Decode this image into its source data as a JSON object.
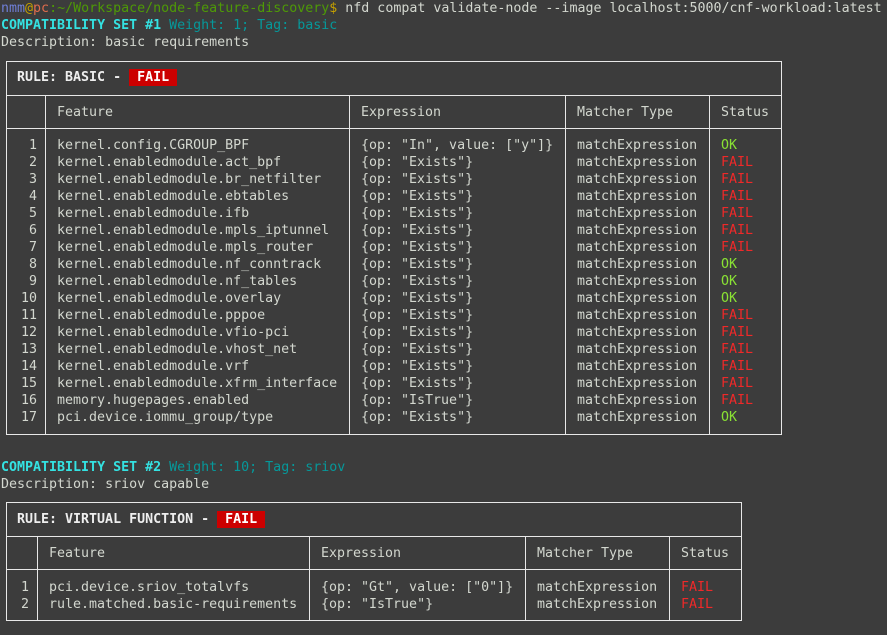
{
  "prompt": {
    "user": "nmm",
    "at": "@",
    "host": "pc",
    "sep": ":",
    "path": "~/Workspace/node-feature-discovery",
    "dollar": "$",
    "command": " nfd compat validate-node --image localhost:5000/cnf-workload:latest"
  },
  "colors": {
    "ok": "#8ae234",
    "fail": "#ef2929",
    "badge_bg": "#cc0000"
  },
  "sets": [
    {
      "heading": "COMPATIBILITY SET #1",
      "meta": " Weight: 1; Tag: basic",
      "description": "Description: basic requirements",
      "rule": {
        "label": "RULE: BASIC - ",
        "status": "FAIL"
      },
      "headers": [
        "Feature",
        "Expression",
        "Matcher Type",
        "Status"
      ],
      "rows": [
        [
          "1",
          "kernel.config.CGROUP_BPF",
          "{op: \"In\", value: [\"y\"]}",
          "matchExpression",
          "OK"
        ],
        [
          "2",
          "kernel.enabledmodule.act_bpf",
          "{op: \"Exists\"}",
          "matchExpression",
          "FAIL"
        ],
        [
          "3",
          "kernel.enabledmodule.br_netfilter",
          "{op: \"Exists\"}",
          "matchExpression",
          "FAIL"
        ],
        [
          "4",
          "kernel.enabledmodule.ebtables",
          "{op: \"Exists\"}",
          "matchExpression",
          "FAIL"
        ],
        [
          "5",
          "kernel.enabledmodule.ifb",
          "{op: \"Exists\"}",
          "matchExpression",
          "FAIL"
        ],
        [
          "6",
          "kernel.enabledmodule.mpls_iptunnel",
          "{op: \"Exists\"}",
          "matchExpression",
          "FAIL"
        ],
        [
          "7",
          "kernel.enabledmodule.mpls_router",
          "{op: \"Exists\"}",
          "matchExpression",
          "FAIL"
        ],
        [
          "8",
          "kernel.enabledmodule.nf_conntrack",
          "{op: \"Exists\"}",
          "matchExpression",
          "OK"
        ],
        [
          "9",
          "kernel.enabledmodule.nf_tables",
          "{op: \"Exists\"}",
          "matchExpression",
          "OK"
        ],
        [
          "10",
          "kernel.enabledmodule.overlay",
          "{op: \"Exists\"}",
          "matchExpression",
          "OK"
        ],
        [
          "11",
          "kernel.enabledmodule.pppoe",
          "{op: \"Exists\"}",
          "matchExpression",
          "FAIL"
        ],
        [
          "12",
          "kernel.enabledmodule.vfio-pci",
          "{op: \"Exists\"}",
          "matchExpression",
          "FAIL"
        ],
        [
          "13",
          "kernel.enabledmodule.vhost_net",
          "{op: \"Exists\"}",
          "matchExpression",
          "FAIL"
        ],
        [
          "14",
          "kernel.enabledmodule.vrf",
          "{op: \"Exists\"}",
          "matchExpression",
          "FAIL"
        ],
        [
          "15",
          "kernel.enabledmodule.xfrm_interface",
          "{op: \"Exists\"}",
          "matchExpression",
          "FAIL"
        ],
        [
          "16",
          "memory.hugepages.enabled",
          "{op: \"IsTrue\"}",
          "matchExpression",
          "FAIL"
        ],
        [
          "17",
          "pci.device.iommu_group/type",
          "{op: \"Exists\"}",
          "matchExpression",
          "OK"
        ]
      ]
    },
    {
      "heading": "COMPATIBILITY SET #2",
      "meta": " Weight: 10; Tag: sriov",
      "description": "Description: sriov capable",
      "rule": {
        "label": "RULE: VIRTUAL FUNCTION - ",
        "status": "FAIL"
      },
      "headers": [
        "Feature",
        "Expression",
        "Matcher Type",
        "Status"
      ],
      "rows": [
        [
          "1",
          "pci.device.sriov_totalvfs",
          "{op: \"Gt\", value: [\"0\"]}",
          "matchExpression",
          "FAIL"
        ],
        [
          "2",
          "rule.matched.basic-requirements",
          "{op: \"IsTrue\"}",
          "matchExpression",
          "FAIL"
        ]
      ]
    }
  ]
}
